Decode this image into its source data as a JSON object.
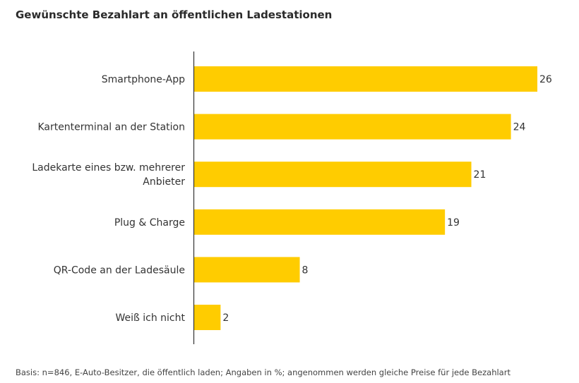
{
  "title": "Gewünschte Bezahlart an öffentlichen Ladestationen",
  "footnote": "Basis: n=846, E-Auto-Besitzer, die öffentlich laden; Angaben in %; angenommen werden gleiche Preise für jede Bezahlart",
  "colors": {
    "bar": "#FFCC00",
    "axis": "#333333",
    "text": "#333333"
  },
  "chart_data": {
    "type": "bar",
    "orientation": "horizontal",
    "categories": [
      [
        "Smartphone-App"
      ],
      [
        "Kartenterminal an der Station"
      ],
      [
        "Ladekarte eines bzw. mehrerer",
        "Anbieter"
      ],
      [
        "Plug & Charge"
      ],
      [
        "QR-Code an der Ladesäule"
      ],
      [
        "Weiß ich nicht"
      ]
    ],
    "values": [
      26,
      24,
      21,
      19,
      8,
      2
    ],
    "data_labels": [
      "26",
      "24",
      "21",
      "19",
      "8",
      "2"
    ],
    "xlim": [
      0,
      26
    ],
    "grid": false,
    "legend": "none"
  }
}
